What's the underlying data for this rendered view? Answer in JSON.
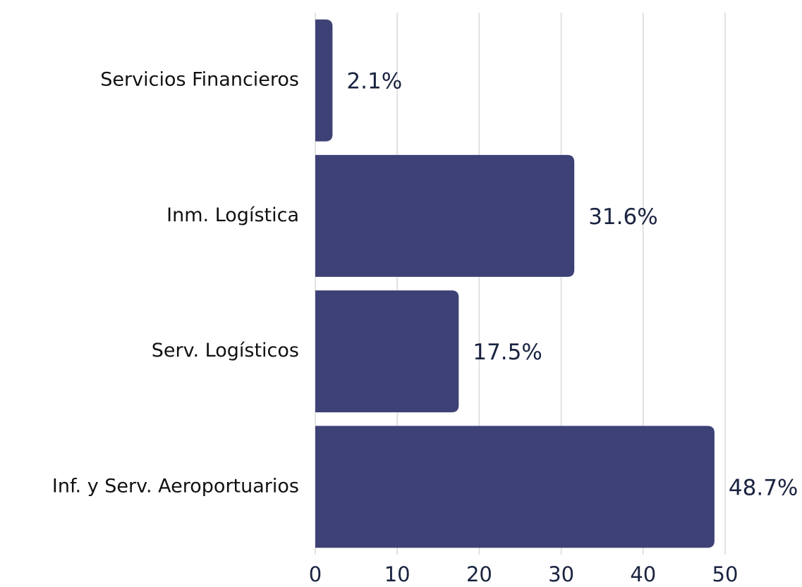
{
  "chart_data": {
    "type": "bar",
    "orientation": "horizontal",
    "categories": [
      "Servicios Financieros",
      "Inm. Logística",
      "Serv. Logísticos",
      "Inf. y Serv. Aeroportuarios"
    ],
    "values": [
      2.1,
      31.6,
      17.5,
      48.7
    ],
    "value_labels": [
      "2.1%",
      "31.6%",
      "17.5%",
      "48.7%"
    ],
    "color": "#3d4176",
    "xlim": [
      0,
      50
    ],
    "xticks": [
      0,
      10,
      20,
      30,
      40,
      50
    ],
    "grid": true
  }
}
